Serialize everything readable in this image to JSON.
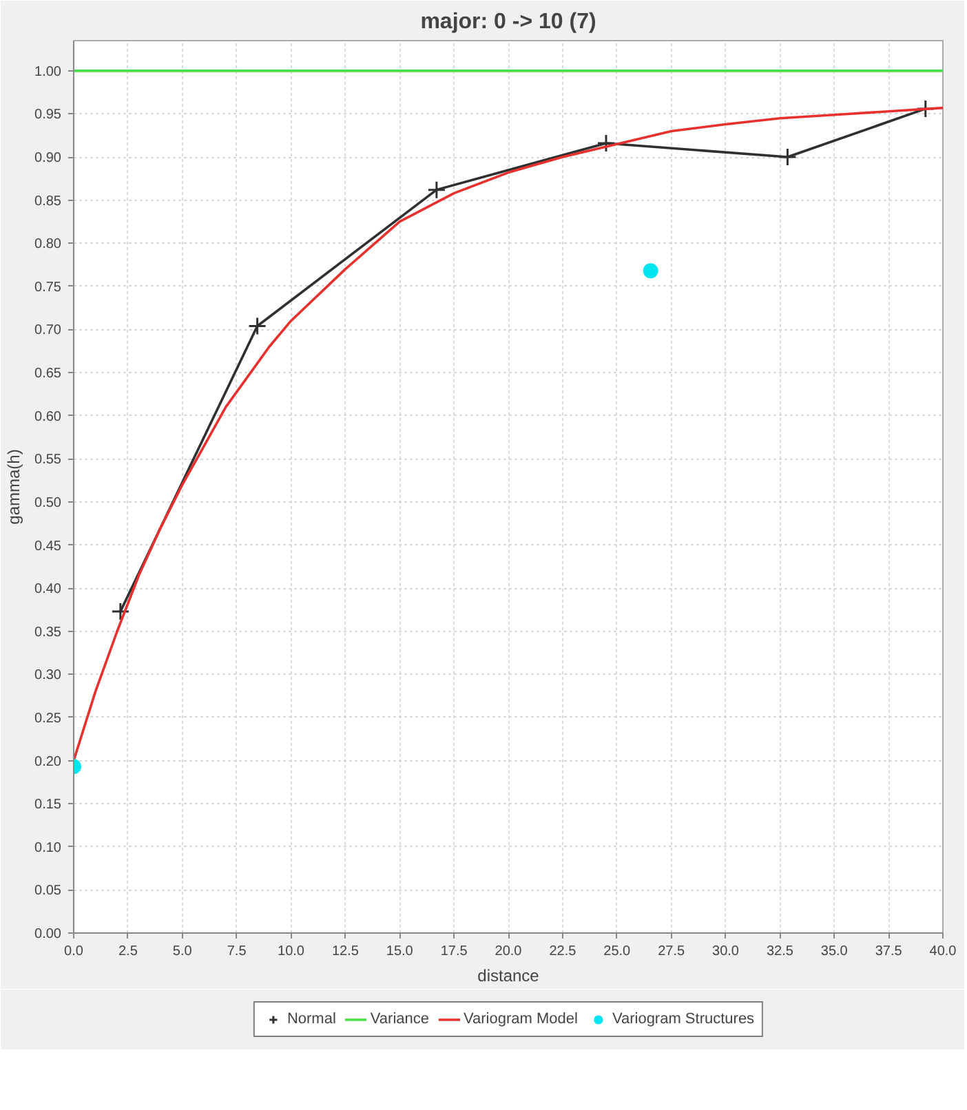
{
  "chart_data": {
    "type": "line",
    "title": "major: 0 -> 10 (7)",
    "xlabel": "distance",
    "ylabel": "gamma(h)",
    "xlim": [
      0,
      40
    ],
    "ylim": [
      0,
      1.035
    ],
    "xticks": [
      {
        "value": 0,
        "label": "0.0"
      },
      {
        "value": 2.5,
        "label": "2.5"
      },
      {
        "value": 5,
        "label": "5.0"
      },
      {
        "value": 7.5,
        "label": "7.5"
      },
      {
        "value": 10,
        "label": "10.0"
      },
      {
        "value": 12.5,
        "label": "12.5"
      },
      {
        "value": 15,
        "label": "15.0"
      },
      {
        "value": 17.5,
        "label": "17.5"
      },
      {
        "value": 20,
        "label": "20.0"
      },
      {
        "value": 22.5,
        "label": "22.5"
      },
      {
        "value": 25,
        "label": "25.0"
      },
      {
        "value": 27.5,
        "label": "27.5"
      },
      {
        "value": 30,
        "label": "30.0"
      },
      {
        "value": 32.5,
        "label": "32.5"
      },
      {
        "value": 35,
        "label": "35.0"
      },
      {
        "value": 37.5,
        "label": "37.5"
      },
      {
        "value": 40,
        "label": "40.0"
      }
    ],
    "yticks": [
      {
        "value": 0,
        "label": "0.00"
      },
      0.05,
      {
        "value": 0.1,
        "label": "0.10"
      },
      0.15,
      {
        "value": 0.2,
        "label": "0.20"
      },
      0.25,
      {
        "value": 0.3,
        "label": "0.30"
      },
      0.35,
      {
        "value": 0.4,
        "label": "0.40"
      },
      0.45,
      {
        "value": 0.5,
        "label": "0.50"
      },
      0.55,
      {
        "value": 0.6,
        "label": "0.60"
      },
      0.65,
      {
        "value": 0.7,
        "label": "0.70"
      },
      0.75,
      {
        "value": 0.8,
        "label": "0.80"
      },
      0.85,
      {
        "value": 0.9,
        "label": "0.90"
      },
      0.95,
      {
        "value": 1,
        "label": "1.00"
      }
    ],
    "grid": true,
    "legend": "bottom",
    "series": [
      {
        "name": "Normal",
        "marker": "cross",
        "color": "#303030",
        "x": [
          2.15,
          8.45,
          16.7,
          24.5,
          32.85,
          39.2
        ],
        "values": [
          0.373,
          0.704,
          0.862,
          0.916,
          0.9,
          0.956
        ]
      },
      {
        "name": "Variance",
        "color": "#44e044",
        "x": [
          0,
          40
        ],
        "values": [
          1.0,
          1.0
        ]
      },
      {
        "name": "Variogram Model",
        "color": "#e8312f",
        "x": [
          0,
          1,
          2,
          3,
          4,
          5,
          6,
          7,
          8,
          9,
          10,
          12.5,
          15,
          17.5,
          20,
          22.5,
          25,
          27.5,
          30,
          32.5,
          35,
          37.5,
          40
        ],
        "values": [
          0.2,
          0.28,
          0.35,
          0.415,
          0.47,
          0.52,
          0.565,
          0.61,
          0.645,
          0.68,
          0.71,
          0.77,
          0.825,
          0.858,
          0.882,
          0.9,
          0.915,
          0.93,
          0.938,
          0.945,
          0.949,
          0.953,
          0.957
        ]
      },
      {
        "name": "Variogram Structures",
        "type": "scatter",
        "marker": "circle",
        "color": "#00e5f0",
        "x": [
          0,
          26.55
        ],
        "values": [
          0.193,
          0.768
        ]
      }
    ]
  }
}
